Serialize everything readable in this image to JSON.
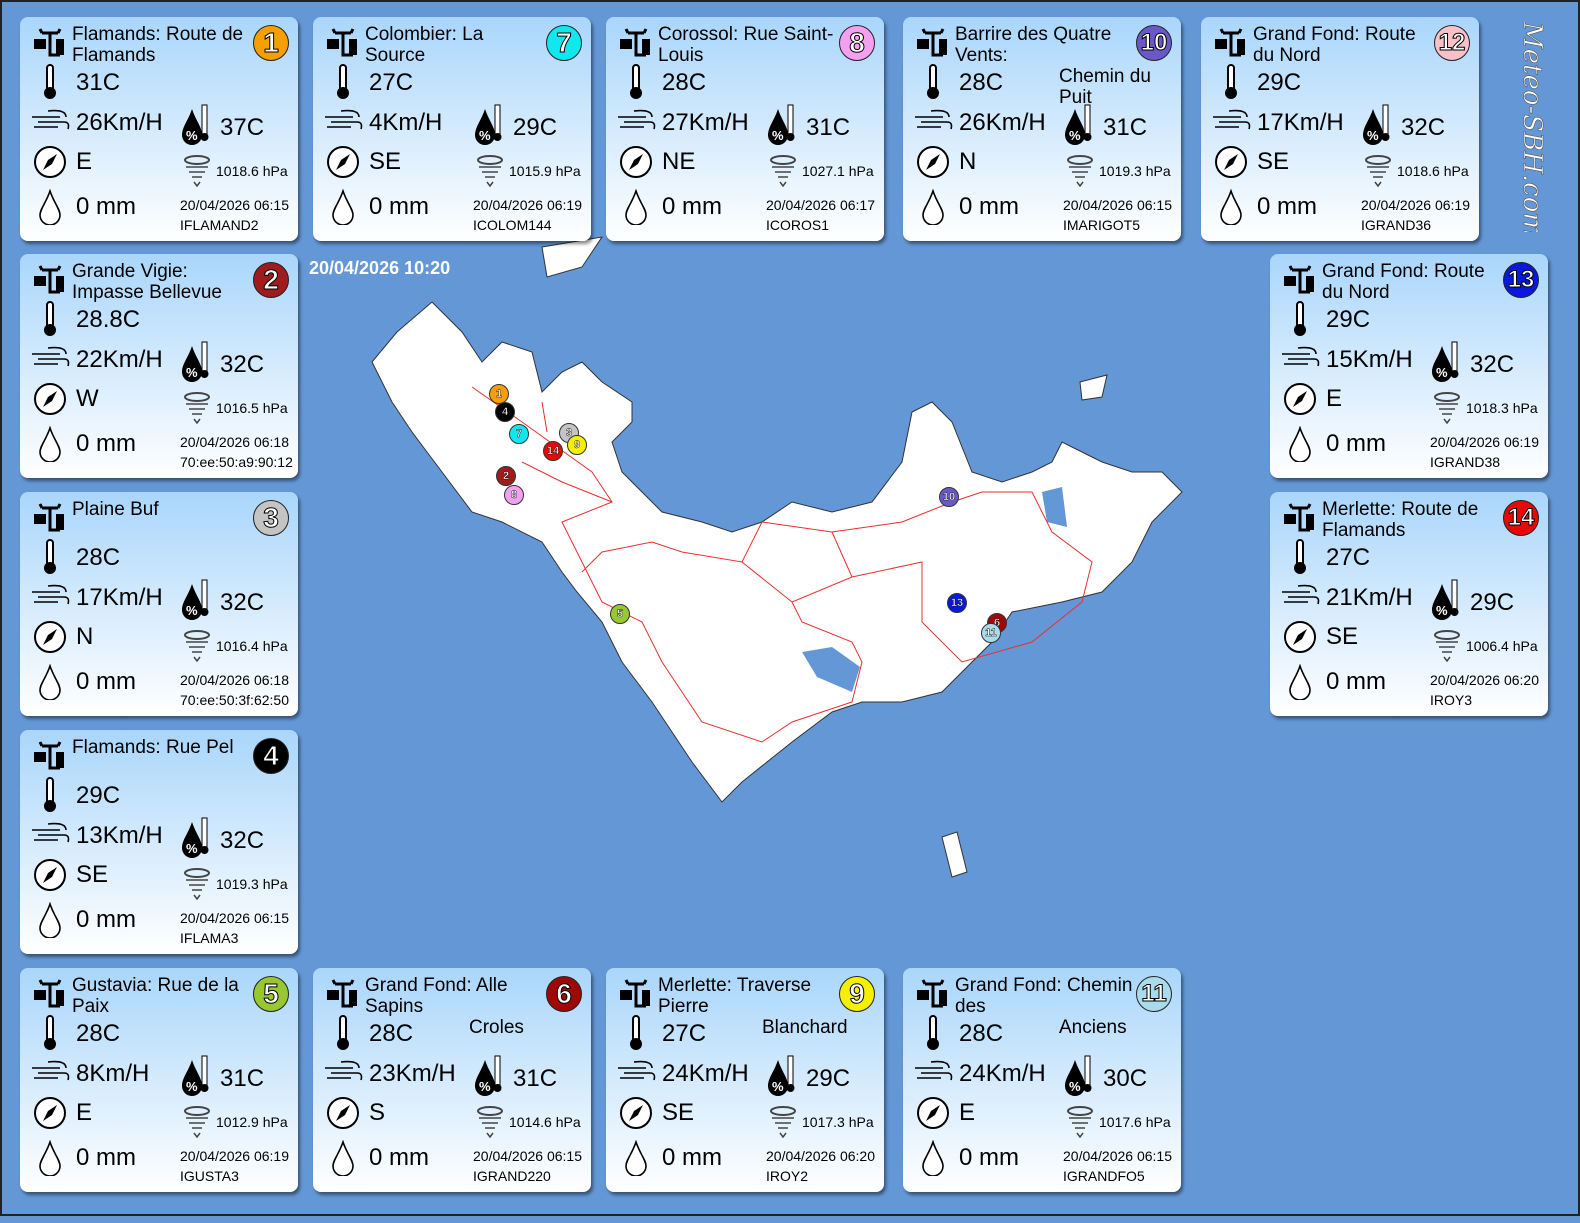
{
  "timestamp": "20/04/2026 10:20",
  "logo_text": "Meteo-SBH.com",
  "stations": [
    {
      "num": "1",
      "color": "#f5a000",
      "title": "Flamands: Route de Flamands",
      "title_overflow": "",
      "temp": "31C",
      "wind": "26Km/H",
      "feel": "37C",
      "dir": "E",
      "pressure": "1018.6 hPa",
      "rain": "0 mm",
      "date": "20/04/2026 06:15",
      "id": "IFLAMAND2"
    },
    {
      "num": "7",
      "color": "#10e8f0",
      "title": "Colombier: La Source",
      "title_overflow": "",
      "temp": "27C",
      "wind": "4Km/H",
      "feel": "29C",
      "dir": "SE",
      "pressure": "1015.9 hPa",
      "rain": "0 mm",
      "date": "20/04/2026 06:19",
      "id": "ICOLOM144"
    },
    {
      "num": "8",
      "color": "#f4a0f0",
      "title": "Corossol: Rue Saint-Louis",
      "title_overflow": "",
      "temp": "28C",
      "wind": "27Km/H",
      "feel": "31C",
      "dir": "NE",
      "pressure": "1027.1 hPa",
      "rain": "0 mm",
      "date": "20/04/2026 06:17",
      "id": "ICOROS1"
    },
    {
      "num": "10",
      "color": "#6a58c8",
      "title": "Barrire des Quatre Vents:",
      "title_overflow": "Chemin du Puit",
      "temp": "28C",
      "wind": "26Km/H",
      "feel": "31C",
      "dir": "N",
      "pressure": "1019.3 hPa",
      "rain": "0 mm",
      "date": "20/04/2026 06:15",
      "id": "IMARIGOT5"
    },
    {
      "num": "12",
      "color": "#f8c0c8",
      "title": "Grand Fond: Route du Nord",
      "title_overflow": "",
      "temp": "29C",
      "wind": "17Km/H",
      "feel": "32C",
      "dir": "SE",
      "pressure": "1018.6 hPa",
      "rain": "0 mm",
      "date": "20/04/2026 06:19",
      "id": "IGRAND36"
    },
    {
      "num": "2",
      "color": "#a01c1c",
      "title": "Grande Vigie: Impasse Bellevue",
      "title_overflow": "",
      "temp": "28.8C",
      "wind": "22Km/H",
      "feel": "32C",
      "dir": "W",
      "pressure": "1016.5 hPa",
      "rain": "0 mm",
      "date": "20/04/2026 06:18",
      "id": "70:ee:50:a9:90:12"
    },
    {
      "num": "3",
      "color": "#c4c4c4",
      "title": "Plaine  Buf",
      "title_overflow": "",
      "temp": "28C",
      "wind": "17Km/H",
      "feel": "32C",
      "dir": "N",
      "pressure": "1016.4 hPa",
      "rain": "0 mm",
      "date": "20/04/2026 06:18",
      "id": "70:ee:50:3f:62:50"
    },
    {
      "num": "4",
      "color": "#000000",
      "title": "Flamands: Rue Pel",
      "title_overflow": "",
      "temp": "29C",
      "wind": "13Km/H",
      "feel": "32C",
      "dir": "SE",
      "pressure": "1019.3 hPa",
      "rain": "0 mm",
      "date": "20/04/2026 06:15",
      "id": "IFLAMA3"
    },
    {
      "num": "5",
      "color": "#98c830",
      "title": "Gustavia: Rue de la Paix",
      "title_overflow": "",
      "temp": "28C",
      "wind": "8Km/H",
      "feel": "31C",
      "dir": "E",
      "pressure": "1012.9 hPa",
      "rain": "0 mm",
      "date": "20/04/2026 06:19",
      "id": "IGUSTA3"
    },
    {
      "num": "6",
      "color": "#a00808",
      "title": "Grand Fond: Alle Sapins",
      "title_overflow": "Croles",
      "temp": "28C",
      "wind": "23Km/H",
      "feel": "31C",
      "dir": "S",
      "pressure": "1014.6 hPa",
      "rain": "0 mm",
      "date": "20/04/2026 06:15",
      "id": "IGRAND220"
    },
    {
      "num": "9",
      "color": "#f4f000",
      "title": "Merlette: Traverse Pierre",
      "title_overflow": "Blanchard",
      "temp": "27C",
      "wind": "24Km/H",
      "feel": "29C",
      "dir": "SE",
      "pressure": "1017.3 hPa",
      "rain": "0 mm",
      "date": "20/04/2026 06:20",
      "id": "IROY2"
    },
    {
      "num": "11",
      "color": "#a8dcec",
      "title": "Grand Fond: Chemin des",
      "title_overflow": "Anciens",
      "temp": "28C",
      "wind": "24Km/H",
      "feel": "30C",
      "dir": "E",
      "pressure": "1017.6 hPa",
      "rain": "0 mm",
      "date": "20/04/2026 06:15",
      "id": "IGRANDFO5"
    },
    {
      "num": "13",
      "color": "#0818e0",
      "title": "Grand Fond: Route du Nord",
      "title_overflow": "",
      "temp": "29C",
      "wind": "15Km/H",
      "feel": "32C",
      "dir": "E",
      "pressure": "1018.3 hPa",
      "rain": "0 mm",
      "date": "20/04/2026 06:19",
      "id": "IGRAND38"
    },
    {
      "num": "14",
      "color": "#e80808",
      "title": "Merlette: Route de Flamands",
      "title_overflow": "",
      "temp": "27C",
      "wind": "21Km/H",
      "feel": "29C",
      "dir": "SE",
      "pressure": "1006.4 hPa",
      "rain": "0 mm",
      "date": "20/04/2026 06:20",
      "id": "IROY3"
    }
  ],
  "icons": {
    "station": "weather-station-icon",
    "temp": "thermometer-icon",
    "wind": "wind-icon",
    "feel": "heat-index-icon",
    "dir": "compass-icon",
    "pressure": "barometer-icon",
    "rain": "raindrop-icon"
  }
}
